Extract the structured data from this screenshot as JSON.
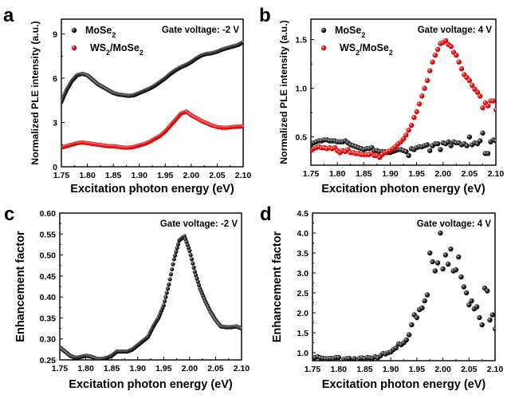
{
  "colors": {
    "black_series": "#000000",
    "red_series": "#e00000"
  },
  "chart_data": [
    {
      "panel": "a",
      "type": "scatter",
      "xlabel": "Excitation photon energy (eV)",
      "ylabel": "Normalized PLE intensity (a.u.)",
      "annotation": "Gate voltage: -2 V",
      "xlim": [
        1.75,
        2.1
      ],
      "ylim": [
        0,
        10
      ],
      "xticks": [
        1.75,
        1.8,
        1.85,
        1.9,
        1.95,
        2.0,
        2.05,
        2.1
      ],
      "xtick_labels": [
        "1.75",
        "1.80",
        "1.85",
        "1.90",
        "1.95",
        "2.00",
        "2.05",
        "2.10"
      ],
      "yticks": [
        0,
        3,
        6,
        9
      ],
      "ytick_labels": [
        "0",
        "3",
        "6",
        "9"
      ],
      "legend_placement": "top-left",
      "series": [
        {
          "name": "MoSe2",
          "color": "black",
          "dense": true,
          "x": [
            1.75,
            1.76,
            1.77,
            1.78,
            1.79,
            1.8,
            1.81,
            1.82,
            1.83,
            1.84,
            1.85,
            1.86,
            1.87,
            1.88,
            1.89,
            1.9,
            1.91,
            1.92,
            1.93,
            1.94,
            1.95,
            1.96,
            1.97,
            1.98,
            1.99,
            2.0,
            2.01,
            2.02,
            2.03,
            2.04,
            2.05,
            2.06,
            2.07,
            2.08,
            2.09,
            2.1
          ],
          "y": [
            4.4,
            5.2,
            5.8,
            6.2,
            6.3,
            6.2,
            5.9,
            5.6,
            5.4,
            5.2,
            5.0,
            4.9,
            4.85,
            4.8,
            4.85,
            5.0,
            5.15,
            5.3,
            5.5,
            5.75,
            6.0,
            6.3,
            6.55,
            6.75,
            6.9,
            7.1,
            7.35,
            7.55,
            7.65,
            7.7,
            7.8,
            7.95,
            8.05,
            8.15,
            8.25,
            8.45
          ]
        },
        {
          "name": "WS2/MoSe2",
          "color": "red",
          "dense": true,
          "x": [
            1.75,
            1.76,
            1.77,
            1.78,
            1.79,
            1.8,
            1.81,
            1.82,
            1.83,
            1.84,
            1.85,
            1.86,
            1.87,
            1.88,
            1.89,
            1.9,
            1.91,
            1.92,
            1.93,
            1.94,
            1.95,
            1.96,
            1.97,
            1.98,
            1.99,
            2.0,
            2.01,
            2.02,
            2.03,
            2.04,
            2.05,
            2.06,
            2.07,
            2.08,
            2.09,
            2.1
          ],
          "y": [
            1.3,
            1.4,
            1.5,
            1.6,
            1.65,
            1.6,
            1.55,
            1.5,
            1.45,
            1.4,
            1.4,
            1.35,
            1.3,
            1.3,
            1.35,
            1.45,
            1.55,
            1.7,
            1.9,
            2.1,
            2.4,
            2.8,
            3.2,
            3.6,
            3.75,
            3.5,
            3.3,
            3.1,
            2.95,
            2.8,
            2.7,
            2.65,
            2.65,
            2.7,
            2.72,
            2.75
          ]
        }
      ]
    },
    {
      "panel": "b",
      "type": "scatter",
      "xlabel": "Excitation photon energy (eV)",
      "ylabel": "Normalized PLE intensity (a.u.)",
      "annotation": "Gate voltage: 4 V",
      "xlim": [
        1.75,
        2.1
      ],
      "ylim": [
        0.21,
        1.71
      ],
      "xticks": [
        1.75,
        1.8,
        1.85,
        1.9,
        1.95,
        2.0,
        2.05,
        2.1
      ],
      "xtick_labels": [
        "1.75",
        "1.80",
        "1.85",
        "1.90",
        "1.95",
        "2.00",
        "2.05",
        "2.10"
      ],
      "yticks": [
        0.5,
        1.0,
        1.5
      ],
      "ytick_labels": [
        "0.5",
        "1.0",
        "1.5"
      ],
      "legend_placement": "top-left",
      "series": [
        {
          "name": "MoSe2",
          "color": "black",
          "dense": false,
          "x": [
            1.75,
            1.755,
            1.76,
            1.765,
            1.77,
            1.775,
            1.78,
            1.785,
            1.79,
            1.795,
            1.8,
            1.805,
            1.81,
            1.815,
            1.82,
            1.825,
            1.83,
            1.835,
            1.84,
            1.845,
            1.85,
            1.855,
            1.86,
            1.865,
            1.87,
            1.875,
            1.88,
            1.885,
            1.89,
            1.895,
            1.9,
            1.905,
            1.91,
            1.915,
            1.92,
            1.925,
            1.93,
            1.935,
            1.94,
            1.945,
            1.95,
            1.955,
            1.96,
            1.965,
            1.97,
            1.975,
            1.98,
            1.985,
            1.99,
            1.995,
            2.0,
            2.005,
            2.01,
            2.015,
            2.02,
            2.025,
            2.03,
            2.035,
            2.04,
            2.045,
            2.05,
            2.055,
            2.06,
            2.065,
            2.07,
            2.075,
            2.08,
            2.085,
            2.09,
            2.095,
            2.1
          ],
          "y": [
            0.42,
            0.44,
            0.45,
            0.46,
            0.46,
            0.47,
            0.47,
            0.46,
            0.46,
            0.46,
            0.45,
            0.45,
            0.45,
            0.46,
            0.44,
            0.42,
            0.41,
            0.4,
            0.39,
            0.38,
            0.37,
            0.38,
            0.38,
            0.39,
            0.36,
            0.36,
            0.35,
            0.35,
            0.35,
            0.34,
            0.34,
            0.35,
            0.36,
            0.37,
            0.37,
            0.36,
            0.35,
            0.31,
            0.38,
            0.37,
            0.39,
            0.4,
            0.4,
            0.41,
            0.42,
            0.36,
            0.41,
            0.43,
            0.43,
            0.37,
            0.44,
            0.43,
            0.45,
            0.41,
            0.45,
            0.44,
            0.44,
            0.42,
            0.43,
            0.41,
            0.5,
            0.42,
            0.44,
            0.43,
            0.46,
            0.54,
            0.33,
            0.33,
            0.45,
            0.47,
            0.46
          ]
        },
        {
          "name": "WS2/MoSe2",
          "color": "red",
          "dense": false,
          "x": [
            1.75,
            1.755,
            1.76,
            1.765,
            1.77,
            1.775,
            1.78,
            1.785,
            1.79,
            1.795,
            1.8,
            1.805,
            1.81,
            1.815,
            1.82,
            1.825,
            1.83,
            1.835,
            1.84,
            1.845,
            1.85,
            1.855,
            1.86,
            1.865,
            1.87,
            1.875,
            1.88,
            1.885,
            1.89,
            1.895,
            1.9,
            1.905,
            1.91,
            1.915,
            1.92,
            1.925,
            1.93,
            1.935,
            1.94,
            1.945,
            1.95,
            1.955,
            1.96,
            1.965,
            1.97,
            1.975,
            1.98,
            1.985,
            1.99,
            1.995,
            2.0,
            2.005,
            2.01,
            2.015,
            2.02,
            2.025,
            2.03,
            2.035,
            2.04,
            2.045,
            2.05,
            2.055,
            2.06,
            2.065,
            2.07,
            2.075,
            2.08,
            2.085,
            2.09,
            2.095,
            2.1
          ],
          "y": [
            0.36,
            0.38,
            0.39,
            0.4,
            0.39,
            0.39,
            0.38,
            0.39,
            0.38,
            0.39,
            0.36,
            0.34,
            0.36,
            0.35,
            0.37,
            0.34,
            0.34,
            0.33,
            0.33,
            0.32,
            0.32,
            0.32,
            0.32,
            0.33,
            0.31,
            0.31,
            0.29,
            0.32,
            0.34,
            0.35,
            0.36,
            0.38,
            0.4,
            0.43,
            0.45,
            0.48,
            0.52,
            0.57,
            0.62,
            0.7,
            0.76,
            0.84,
            0.92,
            1.0,
            1.08,
            1.18,
            1.27,
            1.34,
            1.4,
            1.46,
            1.47,
            1.49,
            1.45,
            1.43,
            1.37,
            1.34,
            1.27,
            1.2,
            1.14,
            1.11,
            1.08,
            1.03,
            0.99,
            0.96,
            0.92,
            0.8,
            0.85,
            0.82,
            0.87,
            0.87,
            0.78
          ]
        }
      ]
    },
    {
      "panel": "c",
      "type": "scatter",
      "xlabel": "Excitation photon energy (eV)",
      "ylabel": "Enhancement factor",
      "annotation": "Gate voltage: -2 V",
      "xlim": [
        1.75,
        2.1
      ],
      "ylim": [
        0.25,
        0.6
      ],
      "xticks": [
        1.75,
        1.8,
        1.85,
        1.9,
        1.95,
        2.0,
        2.05,
        2.1
      ],
      "xtick_labels": [
        "1.75",
        "1.80",
        "1.85",
        "1.90",
        "1.95",
        "2.00",
        "2.05",
        "2.10"
      ],
      "yticks": [
        0.25,
        0.3,
        0.35,
        0.4,
        0.45,
        0.5,
        0.55,
        0.6
      ],
      "ytick_labels": [
        "0.25",
        "0.30",
        "0.35",
        "0.40",
        "0.45",
        "0.50",
        "0.55",
        "0.60"
      ],
      "series": [
        {
          "name": "Enhancement factor",
          "color": "black",
          "dense": true,
          "x": [
            1.75,
            1.76,
            1.77,
            1.78,
            1.79,
            1.8,
            1.81,
            1.82,
            1.83,
            1.84,
            1.85,
            1.86,
            1.87,
            1.88,
            1.89,
            1.9,
            1.91,
            1.92,
            1.93,
            1.94,
            1.95,
            1.96,
            1.97,
            1.98,
            1.99,
            2.0,
            2.01,
            2.02,
            2.03,
            2.04,
            2.05,
            2.06,
            2.07,
            2.08,
            2.09,
            2.1
          ],
          "y": [
            0.28,
            0.27,
            0.26,
            0.255,
            0.257,
            0.26,
            0.258,
            0.253,
            0.252,
            0.255,
            0.26,
            0.27,
            0.27,
            0.27,
            0.275,
            0.285,
            0.295,
            0.305,
            0.33,
            0.35,
            0.38,
            0.43,
            0.49,
            0.535,
            0.545,
            0.51,
            0.46,
            0.42,
            0.39,
            0.365,
            0.345,
            0.33,
            0.328,
            0.328,
            0.33,
            0.325
          ]
        }
      ]
    },
    {
      "panel": "d",
      "type": "scatter",
      "xlabel": "Excitation photon energy (eV)",
      "ylabel": "Enhancement factor",
      "annotation": "Gate voltage: 4 V",
      "xlim": [
        1.75,
        2.1
      ],
      "ylim": [
        0.8,
        4.5
      ],
      "xticks": [
        1.75,
        1.8,
        1.85,
        1.9,
        1.95,
        2.0,
        2.05,
        2.1
      ],
      "xtick_labels": [
        "1.75",
        "1.80",
        "1.85",
        "1.90",
        "1.95",
        "2.00",
        "2.05",
        "2.10"
      ],
      "yticks": [
        1.0,
        1.5,
        2.0,
        2.5,
        3.0,
        3.5,
        4.0,
        4.5
      ],
      "ytick_labels": [
        "1.0",
        "1.5",
        "2.0",
        "2.5",
        "3.0",
        "3.5",
        "4.0",
        "4.5"
      ],
      "series": [
        {
          "name": "Enhancement factor",
          "color": "black",
          "dense": false,
          "x": [
            1.75,
            1.755,
            1.76,
            1.765,
            1.77,
            1.775,
            1.78,
            1.785,
            1.79,
            1.795,
            1.8,
            1.81,
            1.815,
            1.82,
            1.83,
            1.84,
            1.845,
            1.85,
            1.855,
            1.86,
            1.865,
            1.87,
            1.875,
            1.88,
            1.885,
            1.89,
            1.895,
            1.9,
            1.905,
            1.91,
            1.915,
            1.92,
            1.925,
            1.93,
            1.935,
            1.94,
            1.945,
            1.95,
            1.955,
            1.96,
            1.965,
            1.97,
            1.975,
            1.98,
            1.985,
            1.99,
            1.995,
            2.0,
            2.005,
            2.01,
            2.015,
            2.02,
            2.025,
            2.03,
            2.035,
            2.04,
            2.045,
            2.05,
            2.055,
            2.06,
            2.065,
            2.07,
            2.075,
            2.08,
            2.085,
            2.09,
            2.095,
            2.1
          ],
          "y": [
            0.85,
            0.88,
            0.9,
            0.87,
            0.86,
            0.85,
            0.85,
            0.86,
            0.85,
            0.88,
            0.88,
            0.84,
            0.85,
            0.86,
            0.85,
            0.86,
            0.87,
            0.85,
            0.88,
            0.87,
            0.86,
            0.9,
            0.87,
            0.92,
            0.98,
            0.97,
            1.0,
            1.02,
            1.08,
            1.12,
            1.22,
            1.2,
            1.25,
            1.32,
            1.45,
            1.7,
            1.95,
            1.88,
            2.08,
            2.12,
            2.3,
            2.45,
            3.5,
            3.28,
            3.05,
            3.25,
            4.0,
            3.1,
            3.45,
            3.22,
            3.6,
            3.05,
            3.08,
            3.4,
            2.9,
            2.65,
            2.5,
            2.2,
            2.3,
            2.1,
            2.15,
            1.88,
            1.7,
            2.62,
            2.55,
            1.82,
            1.95,
            1.6
          ]
        }
      ]
    }
  ]
}
